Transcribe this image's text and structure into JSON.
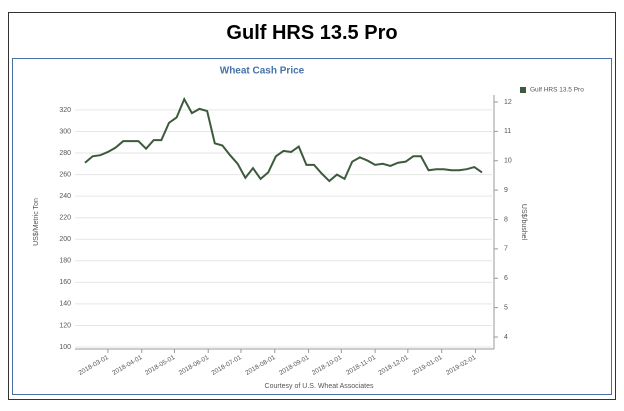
{
  "header": {
    "title": "Gulf HRS 13.5 Pro"
  },
  "chart_data": {
    "type": "line",
    "title": "Wheat Cash Price",
    "ylabel": "US$/Metric Ton",
    "y2label": "US$/bushel",
    "footer": "Courtesy of U.S. Wheat Associates",
    "x": [
      "2018-02-08",
      "2018-02-15",
      "2018-02-22",
      "2018-03-01",
      "2018-03-08",
      "2018-03-15",
      "2018-03-22",
      "2018-03-29",
      "2018-04-05",
      "2018-04-12",
      "2018-04-19",
      "2018-04-26",
      "2018-05-03",
      "2018-05-10",
      "2018-05-17",
      "2018-05-24",
      "2018-05-31",
      "2018-06-07",
      "2018-06-14",
      "2018-06-21",
      "2018-06-28",
      "2018-07-05",
      "2018-07-12",
      "2018-07-19",
      "2018-07-26",
      "2018-08-02",
      "2018-08-09",
      "2018-08-16",
      "2018-08-23",
      "2018-08-30",
      "2018-09-06",
      "2018-09-13",
      "2018-09-20",
      "2018-09-27",
      "2018-10-04",
      "2018-10-11",
      "2018-10-18",
      "2018-10-25",
      "2018-11-01",
      "2018-11-08",
      "2018-11-15",
      "2018-11-22",
      "2018-11-29",
      "2018-12-06",
      "2018-12-13",
      "2018-12-20",
      "2018-12-27",
      "2019-01-03",
      "2019-01-10",
      "2019-01-17",
      "2019-01-24",
      "2019-01-31",
      "2019-02-07"
    ],
    "series": [
      {
        "name": "Gulf HRS 13.5 Pro",
        "color": "#3d5a3d",
        "values": [
          271,
          277,
          278,
          281,
          285,
          291,
          291,
          291,
          284,
          292,
          292,
          308,
          313,
          330,
          317,
          321,
          319,
          289,
          287,
          278,
          270,
          257,
          266,
          256,
          262,
          277,
          282,
          281,
          286,
          269,
          269,
          261,
          254,
          260,
          256,
          272,
          276,
          273,
          269,
          270,
          268,
          271,
          272,
          277,
          277,
          264,
          265,
          265,
          264,
          264,
          265,
          267,
          262
        ]
      }
    ],
    "xlim": [
      "2018-02-08",
      "2019-02-07"
    ],
    "xticks": [
      "2018-03-01",
      "2018-04-01",
      "2018-05-01",
      "2018-06-01",
      "2018-07-01",
      "2018-08-01",
      "2018-09-01",
      "2018-10-01",
      "2018-11-01",
      "2018-12-01",
      "2019-01-01",
      "2019-02-01"
    ],
    "ylim": [
      100,
      332
    ],
    "yticks": [
      100,
      120,
      140,
      160,
      180,
      200,
      220,
      240,
      260,
      280,
      300,
      320
    ],
    "y2lim": [
      3.66,
      12.17
    ],
    "y2ticks": [
      4,
      5,
      6,
      7,
      8,
      9,
      10,
      11,
      12
    ],
    "grid": true,
    "legend": "top-right"
  }
}
